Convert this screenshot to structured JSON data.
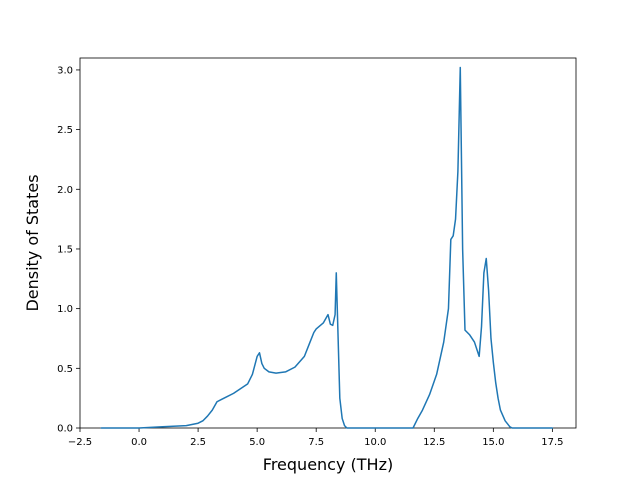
{
  "chart_data": {
    "type": "line",
    "xlabel": "Frequency (THz)",
    "ylabel": "Density of States",
    "xlim": [
      -2.5,
      18.5
    ],
    "ylim": [
      0.0,
      3.1
    ],
    "xticks": [
      -2.5,
      0.0,
      2.5,
      5.0,
      7.5,
      10.0,
      12.5,
      15.0,
      17.5
    ],
    "xtick_labels": [
      "−2.5",
      "0.0",
      "2.5",
      "5.0",
      "7.5",
      "10.0",
      "12.5",
      "15.0",
      "17.5"
    ],
    "yticks": [
      0.0,
      0.5,
      1.0,
      1.5,
      2.0,
      2.5,
      3.0
    ],
    "ytick_labels": [
      "0.0",
      "0.5",
      "1.0",
      "1.5",
      "2.0",
      "2.5",
      "3.0"
    ],
    "grid": false,
    "legend": "none",
    "series": [
      {
        "color": "#1f77b4",
        "x": [
          -1.6,
          0.0,
          1.0,
          2.0,
          2.5,
          2.7,
          2.9,
          3.1,
          3.3,
          3.5,
          3.7,
          4.0,
          4.3,
          4.6,
          4.8,
          5.0,
          5.1,
          5.2,
          5.3,
          5.5,
          5.8,
          6.2,
          6.6,
          7.0,
          7.2,
          7.4,
          7.5,
          7.8,
          8.0,
          8.1,
          8.2,
          8.3,
          8.35,
          8.4,
          8.45,
          8.5,
          8.6,
          8.7,
          8.8,
          8.9,
          9.0,
          10.0,
          11.0,
          11.6,
          11.8,
          12.0,
          12.3,
          12.6,
          12.9,
          13.1,
          13.2,
          13.3,
          13.4,
          13.5,
          13.6,
          13.7,
          13.8,
          13.9,
          14.0,
          14.2,
          14.4,
          14.5,
          14.6,
          14.7,
          14.8,
          14.9,
          15.0,
          15.1,
          15.2,
          15.3,
          15.5,
          15.7,
          15.8,
          15.9,
          16.0,
          17.5
        ],
        "y": [
          0.0,
          0.0,
          0.01,
          0.02,
          0.04,
          0.06,
          0.1,
          0.15,
          0.22,
          0.24,
          0.26,
          0.29,
          0.33,
          0.37,
          0.45,
          0.6,
          0.63,
          0.54,
          0.5,
          0.47,
          0.46,
          0.47,
          0.51,
          0.6,
          0.7,
          0.8,
          0.83,
          0.88,
          0.95,
          0.87,
          0.86,
          0.95,
          1.3,
          0.95,
          0.6,
          0.25,
          0.08,
          0.02,
          0.0,
          0.0,
          0.0,
          0.0,
          0.0,
          0.0,
          0.08,
          0.15,
          0.28,
          0.45,
          0.72,
          1.0,
          1.58,
          1.61,
          1.75,
          2.15,
          3.02,
          1.5,
          0.82,
          0.8,
          0.78,
          0.72,
          0.6,
          0.85,
          1.3,
          1.42,
          1.15,
          0.75,
          0.55,
          0.38,
          0.25,
          0.15,
          0.06,
          0.01,
          0.0,
          0.0,
          0.0,
          0.0
        ]
      }
    ]
  }
}
